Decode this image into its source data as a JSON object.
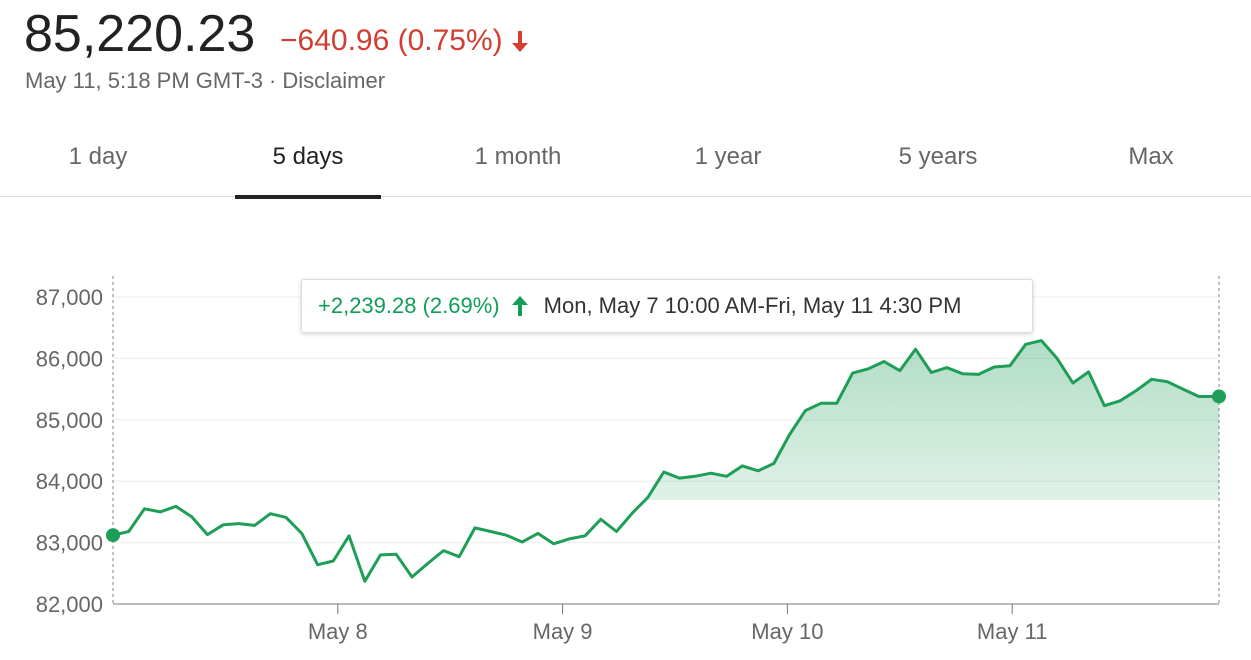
{
  "header": {
    "price": "85,220.23",
    "change": "−640.96 (0.75%)",
    "direction": "down",
    "timestamp": "May 11, 5:18 PM GMT-3",
    "separator": "·",
    "disclaimer": "Disclaimer"
  },
  "colors": {
    "up": "#0f9d58",
    "down": "#d23f31",
    "line": "#1e9e57"
  },
  "tabs": [
    {
      "label": "1 day",
      "active": false
    },
    {
      "label": "5 days",
      "active": true
    },
    {
      "label": "1 month",
      "active": false
    },
    {
      "label": "1 year",
      "active": false
    },
    {
      "label": "5 years",
      "active": false
    },
    {
      "label": "Max",
      "active": false
    }
  ],
  "tooltip": {
    "change": "+2,239.28 (2.69%)",
    "direction": "up",
    "range": "Mon, May 7 10:00 AM-Fri, May 11 4:30 PM"
  },
  "chart_data": {
    "type": "area",
    "title": "",
    "xlabel": "",
    "ylabel": "",
    "ylim": [
      82000,
      87000
    ],
    "yticks": [
      82000,
      83000,
      84000,
      85000,
      86000,
      87000
    ],
    "ytick_labels": [
      "82,000",
      "83,000",
      "84,000",
      "85,000",
      "86,000",
      "87,000"
    ],
    "xlim": [
      0,
      4.92
    ],
    "xticks": [
      1,
      2,
      3,
      4
    ],
    "xtick_labels": [
      "May 8",
      "May 9",
      "May 10",
      "May 11"
    ],
    "grid": true,
    "series": [
      {
        "x": [
          0,
          0.07,
          0.14,
          0.21,
          0.28,
          0.35,
          0.42,
          0.49,
          0.56,
          0.63,
          0.7,
          0.77,
          0.84,
          0.91,
          0.98,
          1.05,
          1.12,
          1.19,
          1.26,
          1.33,
          1.4,
          1.47,
          1.54,
          1.61,
          1.68,
          1.75,
          1.82,
          1.89,
          1.96,
          2.03,
          2.1,
          2.17,
          2.24,
          2.31,
          2.38,
          2.45,
          2.52,
          2.59,
          2.66,
          2.73,
          2.8,
          2.87,
          2.94,
          3.01,
          3.08,
          3.15,
          3.22,
          3.29,
          3.36,
          3.43,
          3.5,
          3.57,
          3.64,
          3.71,
          3.78,
          3.85,
          3.92,
          3.99,
          4.06,
          4.13,
          4.2,
          4.27,
          4.34,
          4.41,
          4.48,
          4.55,
          4.62,
          4.69,
          4.76,
          4.83,
          4.92
        ],
        "y": [
          83120,
          83180,
          83550,
          83500,
          83590,
          83420,
          83130,
          83290,
          83310,
          83280,
          83470,
          83410,
          83150,
          82640,
          82700,
          83110,
          82370,
          82800,
          82810,
          82440,
          82660,
          82870,
          82770,
          83240,
          83180,
          83120,
          83010,
          83150,
          82980,
          83060,
          83110,
          83380,
          83180,
          83480,
          83740,
          84150,
          84050,
          84080,
          84130,
          84080,
          84250,
          84170,
          84290,
          84760,
          85150,
          85270,
          85270,
          85760,
          85830,
          85950,
          85800,
          86150,
          85770,
          85850,
          85750,
          85740,
          85860,
          85880,
          86230,
          86290,
          86000,
          85600,
          85780,
          85230,
          85310,
          85470,
          85660,
          85620,
          85500,
          85380,
          85380
        ]
      }
    ]
  }
}
